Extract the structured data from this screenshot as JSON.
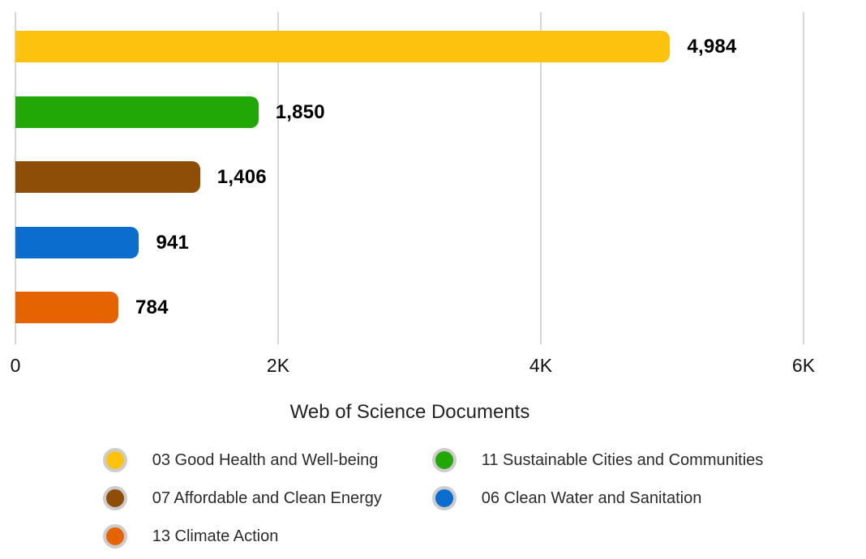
{
  "chart_data": {
    "type": "bar",
    "orientation": "horizontal",
    "title": "",
    "xlabel": "Web of Science Documents",
    "ylabel": "",
    "categories": [
      "03 Good Health and Well-being",
      "11 Sustainable Cities and Communities",
      "07 Affordable and Clean Energy",
      "06 Clean Water and Sanitation",
      "13 Climate Action"
    ],
    "values": [
      4984,
      1850,
      1406,
      941,
      784
    ],
    "value_labels": [
      "4,984",
      "1,850",
      "1,406",
      "941",
      "784"
    ],
    "colors": [
      "#fdc20d",
      "#22a806",
      "#8f4e08",
      "#0b6ecf",
      "#e66302"
    ],
    "x_ticks": [
      {
        "value": 0,
        "label": "0"
      },
      {
        "value": 2000,
        "label": "2K"
      },
      {
        "value": 4000,
        "label": "4K"
      },
      {
        "value": 6000,
        "label": "6K"
      }
    ],
    "xlim": [
      0,
      6300
    ],
    "grid": "vertical",
    "legend_position": "bottom"
  },
  "colors": {
    "gridline": "#d6d6d6",
    "value_label_text": "#000000",
    "tick_text": "#111111",
    "axis_title_text": "#222222",
    "legend_text": "#2b2b2b",
    "legend_ring": "#cccccc",
    "background": "#ffffff"
  }
}
